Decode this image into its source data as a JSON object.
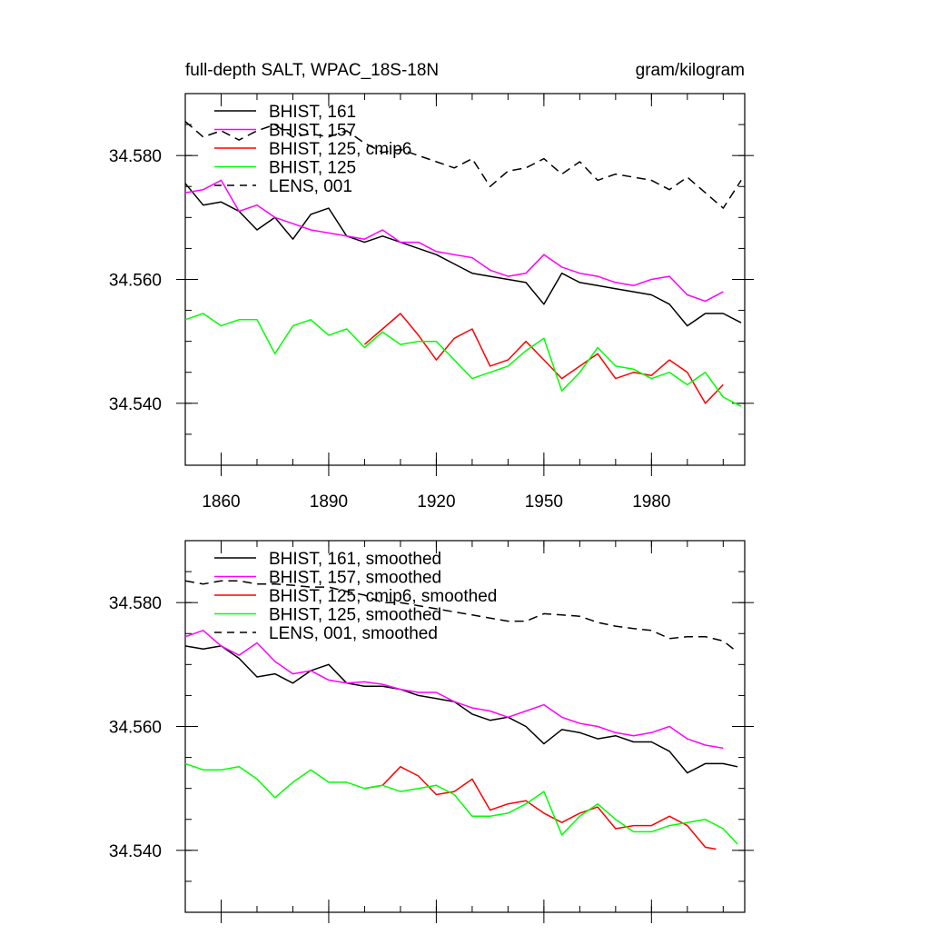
{
  "chart_data": [
    {
      "type": "line",
      "title": "full-depth SALT, WPAC_18S-18N",
      "units": "gram/kilogram",
      "xlim": [
        1850,
        2006
      ],
      "ylim": [
        34.53,
        34.59
      ],
      "xticks": [
        1860,
        1890,
        1920,
        1950,
        1980
      ],
      "yticks": [
        34.54,
        34.56,
        34.58
      ],
      "ytick_labels": [
        "34.540",
        "34.560",
        "34.580"
      ],
      "xtick_labels": [
        "1860",
        "1890",
        "1920",
        "1950",
        "1980"
      ],
      "legend_position": "top-left",
      "series": [
        {
          "name": "BHIST, 161",
          "color": "#000000",
          "dash": "solid",
          "x": [
            1850,
            1855,
            1860,
            1865,
            1870,
            1875,
            1880,
            1885,
            1890,
            1895,
            1900,
            1905,
            1910,
            1915,
            1920,
            1925,
            1930,
            1935,
            1940,
            1945,
            1950,
            1955,
            1960,
            1965,
            1970,
            1975,
            1980,
            1985,
            1990,
            1995,
            2000,
            2005
          ],
          "y": [
            34.5755,
            34.572,
            34.5725,
            34.571,
            34.568,
            34.57,
            34.5665,
            34.5705,
            34.5715,
            34.567,
            34.566,
            34.567,
            34.566,
            34.565,
            34.564,
            34.5625,
            34.561,
            34.5605,
            34.56,
            34.5595,
            34.556,
            34.561,
            34.5595,
            34.559,
            34.5585,
            34.558,
            34.5575,
            34.556,
            34.5525,
            34.5545,
            34.5545,
            34.553
          ]
        },
        {
          "name": "BHIST, 157",
          "color": "#FF00FF",
          "dash": "solid",
          "x": [
            1850,
            1855,
            1860,
            1865,
            1870,
            1875,
            1880,
            1885,
            1890,
            1895,
            1900,
            1905,
            1910,
            1915,
            1920,
            1925,
            1930,
            1935,
            1940,
            1945,
            1950,
            1955,
            1960,
            1965,
            1970,
            1975,
            1980,
            1985,
            1990,
            1995,
            2000
          ],
          "y": [
            34.574,
            34.5745,
            34.576,
            34.571,
            34.572,
            34.57,
            34.569,
            34.568,
            34.5675,
            34.567,
            34.5665,
            34.568,
            34.566,
            34.566,
            34.5645,
            34.564,
            34.5635,
            34.5615,
            34.5605,
            34.561,
            34.564,
            34.562,
            34.561,
            34.5605,
            34.5595,
            34.559,
            34.56,
            34.5605,
            34.5575,
            34.5565,
            34.558
          ]
        },
        {
          "name": "BHIST, 125, cmip6",
          "color": "#FF0000",
          "dash": "solid",
          "x": [
            1900,
            1905,
            1910,
            1915,
            1920,
            1925,
            1930,
            1935,
            1940,
            1945,
            1950,
            1955,
            1960,
            1965,
            1970,
            1975,
            1980,
            1985,
            1990,
            1995,
            2000
          ],
          "y": [
            34.5495,
            34.552,
            34.5545,
            34.551,
            34.547,
            34.5505,
            34.552,
            34.546,
            34.547,
            34.55,
            34.547,
            34.544,
            34.546,
            34.548,
            34.544,
            34.545,
            34.5445,
            34.547,
            34.545,
            34.54,
            34.543
          ]
        },
        {
          "name": "BHIST, 125",
          "color": "#00FF00",
          "dash": "solid",
          "x": [
            1850,
            1855,
            1860,
            1865,
            1870,
            1875,
            1880,
            1885,
            1890,
            1895,
            1900,
            1905,
            1910,
            1915,
            1920,
            1925,
            1930,
            1935,
            1940,
            1945,
            1950,
            1955,
            1960,
            1965,
            1970,
            1975,
            1980,
            1985,
            1990,
            1995,
            2000,
            2005
          ],
          "y": [
            34.5535,
            34.5545,
            34.5525,
            34.5535,
            34.5535,
            34.548,
            34.5525,
            34.5535,
            34.551,
            34.552,
            34.549,
            34.5515,
            34.5495,
            34.55,
            34.55,
            34.547,
            34.544,
            34.545,
            34.546,
            34.5485,
            34.5505,
            34.542,
            34.545,
            34.549,
            34.546,
            34.5455,
            34.544,
            34.545,
            34.543,
            34.545,
            34.541,
            34.5395
          ]
        },
        {
          "name": "LENS, 001",
          "color": "#000000",
          "dash": "dashed",
          "x": [
            1850,
            1855,
            1860,
            1865,
            1870,
            1875,
            1880,
            1885,
            1890,
            1895,
            1900,
            1905,
            1910,
            1915,
            1920,
            1925,
            1930,
            1935,
            1940,
            1945,
            1950,
            1955,
            1960,
            1965,
            1970,
            1975,
            1980,
            1985,
            1990,
            1995,
            2000,
            2005
          ],
          "y": [
            34.5855,
            34.583,
            34.584,
            34.5825,
            34.584,
            34.585,
            34.583,
            34.5835,
            34.583,
            34.584,
            34.582,
            34.5805,
            34.581,
            34.58,
            34.579,
            34.578,
            34.5795,
            34.575,
            34.5775,
            34.578,
            34.5795,
            34.577,
            34.579,
            34.576,
            34.577,
            34.5765,
            34.576,
            34.5745,
            34.5765,
            34.574,
            34.5715,
            34.576
          ]
        }
      ]
    },
    {
      "type": "line",
      "title": "",
      "xlim": [
        1850,
        2006
      ],
      "ylim": [
        34.53,
        34.59
      ],
      "xticks": [
        1860,
        1890,
        1920,
        1950,
        1980
      ],
      "yticks": [
        34.54,
        34.56,
        34.58
      ],
      "ytick_labels": [
        "34.540",
        "34.560",
        "34.580"
      ],
      "legend_position": "top-left",
      "series": [
        {
          "name": "BHIST, 161, smoothed",
          "color": "#000000",
          "dash": "solid",
          "x": [
            1850,
            1855,
            1860,
            1865,
            1870,
            1875,
            1880,
            1885,
            1890,
            1895,
            1900,
            1905,
            1910,
            1915,
            1920,
            1925,
            1930,
            1935,
            1940,
            1945,
            1950,
            1955,
            1960,
            1965,
            1970,
            1975,
            1980,
            1985,
            1990,
            1995,
            2000,
            2004
          ],
          "y": [
            34.573,
            34.5725,
            34.573,
            34.571,
            34.568,
            34.5685,
            34.567,
            34.569,
            34.57,
            34.567,
            34.5665,
            34.5665,
            34.566,
            34.565,
            34.5645,
            34.564,
            34.562,
            34.561,
            34.5615,
            34.56,
            34.5572,
            34.5595,
            34.559,
            34.558,
            34.5585,
            34.5575,
            34.5575,
            34.556,
            34.5525,
            34.554,
            34.554,
            34.5535
          ]
        },
        {
          "name": "BHIST, 157, smoothed",
          "color": "#FF00FF",
          "dash": "solid",
          "x": [
            1850,
            1855,
            1860,
            1865,
            1870,
            1875,
            1880,
            1885,
            1890,
            1895,
            1900,
            1905,
            1910,
            1915,
            1920,
            1925,
            1930,
            1935,
            1940,
            1945,
            1950,
            1955,
            1960,
            1965,
            1970,
            1975,
            1980,
            1985,
            1990,
            1995,
            2000
          ],
          "y": [
            34.5745,
            34.5755,
            34.573,
            34.5715,
            34.5735,
            34.5705,
            34.5685,
            34.569,
            34.5675,
            34.567,
            34.5672,
            34.5668,
            34.566,
            34.5655,
            34.5655,
            34.564,
            34.563,
            34.5625,
            34.5615,
            34.5625,
            34.5635,
            34.5615,
            34.5605,
            34.56,
            34.559,
            34.5585,
            34.559,
            34.56,
            34.558,
            34.557,
            34.5565
          ]
        },
        {
          "name": "BHIST, 125, cmip6, smoothed",
          "color": "#FF0000",
          "dash": "solid",
          "x": [
            1900,
            1905,
            1910,
            1915,
            1920,
            1925,
            1930,
            1935,
            1940,
            1945,
            1950,
            1955,
            1960,
            1965,
            1970,
            1975,
            1980,
            1985,
            1990,
            1995,
            1998
          ],
          "y": [
            34.55,
            34.5505,
            34.5535,
            34.552,
            34.549,
            34.5495,
            34.5515,
            34.5465,
            34.5475,
            34.548,
            34.546,
            34.5445,
            34.546,
            34.547,
            34.5435,
            34.544,
            34.544,
            34.5455,
            34.544,
            34.5405,
            34.5402
          ]
        },
        {
          "name": "BHIST, 125, smoothed",
          "color": "#00FF00",
          "dash": "solid",
          "x": [
            1850,
            1855,
            1860,
            1865,
            1870,
            1875,
            1880,
            1885,
            1890,
            1895,
            1900,
            1905,
            1910,
            1915,
            1920,
            1925,
            1930,
            1935,
            1940,
            1945,
            1950,
            1955,
            1960,
            1965,
            1970,
            1975,
            1980,
            1985,
            1990,
            1995,
            2000,
            2004
          ],
          "y": [
            34.554,
            34.553,
            34.553,
            34.5535,
            34.5515,
            34.5485,
            34.551,
            34.553,
            34.551,
            34.551,
            34.55,
            34.5505,
            34.5495,
            34.55,
            34.5505,
            34.549,
            34.5455,
            34.5455,
            34.546,
            34.5475,
            34.5495,
            34.5425,
            34.5455,
            34.5475,
            34.545,
            34.543,
            34.543,
            34.544,
            34.5445,
            34.545,
            34.5435,
            34.541
          ]
        },
        {
          "name": "LENS, 001, smoothed",
          "color": "#000000",
          "dash": "dashed",
          "x": [
            1850,
            1855,
            1860,
            1865,
            1870,
            1875,
            1880,
            1885,
            1890,
            1895,
            1900,
            1905,
            1910,
            1915,
            1920,
            1925,
            1930,
            1935,
            1940,
            1945,
            1950,
            1955,
            1960,
            1965,
            1970,
            1975,
            1980,
            1985,
            1990,
            1995,
            2000,
            2004
          ],
          "y": [
            34.5835,
            34.583,
            34.5835,
            34.5835,
            34.583,
            34.583,
            34.5828,
            34.5825,
            34.5825,
            34.5818,
            34.5812,
            34.58,
            34.58,
            34.5795,
            34.579,
            34.5785,
            34.578,
            34.5775,
            34.577,
            34.577,
            34.5782,
            34.578,
            34.5778,
            34.5768,
            34.5762,
            34.5758,
            34.5755,
            34.5742,
            34.5745,
            34.5745,
            34.5738,
            34.572
          ]
        }
      ]
    }
  ]
}
